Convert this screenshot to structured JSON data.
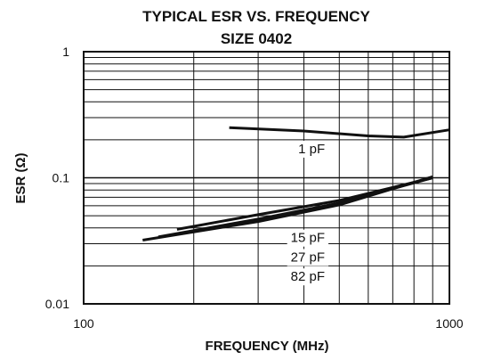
{
  "chart_data": {
    "type": "line",
    "title": "TYPICAL ESR VS. FREQUENCY",
    "subtitle": "SIZE 0402",
    "xlabel": "FREQUENCY (MHz)",
    "ylabel": "ESR (Ω)",
    "x_scale": "log",
    "y_scale": "log",
    "xlim": [
      100,
      1000
    ],
    "ylim": [
      0.01,
      1
    ],
    "x_tick_labels": [
      "100",
      "1000"
    ],
    "y_tick_labels": [
      "1",
      "0.1",
      "0.01"
    ],
    "grid": true,
    "series": [
      {
        "name": "1 pF",
        "x": [
          250,
          400,
          600,
          750,
          1000
        ],
        "y": [
          0.25,
          0.235,
          0.215,
          0.21,
          0.24
        ]
      },
      {
        "name": "15 pF",
        "x": [
          180,
          300,
          500,
          900
        ],
        "y": [
          0.039,
          0.051,
          0.066,
          0.1
        ]
      },
      {
        "name": "27 pF",
        "x": [
          160,
          300,
          500,
          900
        ],
        "y": [
          0.034,
          0.047,
          0.063,
          0.1
        ]
      },
      {
        "name": "82 pF",
        "x": [
          145,
          300,
          500,
          900
        ],
        "y": [
          0.032,
          0.045,
          0.061,
          0.102
        ]
      }
    ]
  }
}
